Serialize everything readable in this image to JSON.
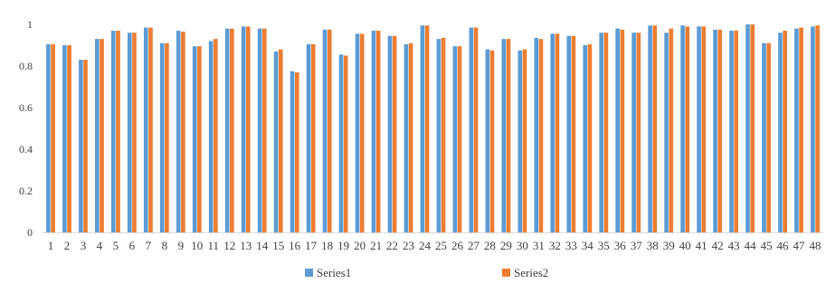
{
  "chart_data": {
    "type": "bar",
    "categories": [
      "1",
      "2",
      "3",
      "4",
      "5",
      "6",
      "7",
      "8",
      "9",
      "10",
      "11",
      "12",
      "13",
      "14",
      "15",
      "16",
      "17",
      "18",
      "19",
      "20",
      "21",
      "22",
      "23",
      "24",
      "25",
      "26",
      "27",
      "28",
      "29",
      "30",
      "31",
      "32",
      "33",
      "34",
      "35",
      "36",
      "37",
      "38",
      "39",
      "40",
      "41",
      "42",
      "43",
      "44",
      "45",
      "46",
      "47",
      "48"
    ],
    "series": [
      {
        "name": "Series1",
        "color": "#5B9BD5",
        "values": [
          0.905,
          0.9,
          0.83,
          0.93,
          0.97,
          0.96,
          0.985,
          0.91,
          0.97,
          0.895,
          0.92,
          0.98,
          0.99,
          0.98,
          0.87,
          0.775,
          0.905,
          0.975,
          0.855,
          0.955,
          0.97,
          0.945,
          0.905,
          0.995,
          0.93,
          0.895,
          0.985,
          0.88,
          0.93,
          0.875,
          0.935,
          0.955,
          0.945,
          0.9,
          0.96,
          0.98,
          0.96,
          0.995,
          0.96,
          0.995,
          0.99,
          0.975,
          0.97,
          1.0,
          0.91,
          0.96,
          0.98,
          0.99
        ]
      },
      {
        "name": "Series2",
        "color": "#ED7D31",
        "values": [
          0.905,
          0.9,
          0.83,
          0.93,
          0.97,
          0.96,
          0.985,
          0.91,
          0.965,
          0.895,
          0.93,
          0.98,
          0.99,
          0.98,
          0.88,
          0.77,
          0.905,
          0.975,
          0.85,
          0.955,
          0.97,
          0.945,
          0.91,
          0.995,
          0.935,
          0.895,
          0.985,
          0.875,
          0.93,
          0.88,
          0.93,
          0.955,
          0.945,
          0.905,
          0.96,
          0.975,
          0.96,
          0.995,
          0.98,
          0.99,
          0.99,
          0.975,
          0.97,
          1.0,
          0.91,
          0.97,
          0.985,
          0.995
        ]
      }
    ],
    "y_ticks": [
      "0",
      "0.2",
      "0.4",
      "0.6",
      "0.8",
      "1"
    ],
    "ylim": [
      0,
      1
    ],
    "grid": false,
    "legend": "bottom-center"
  }
}
